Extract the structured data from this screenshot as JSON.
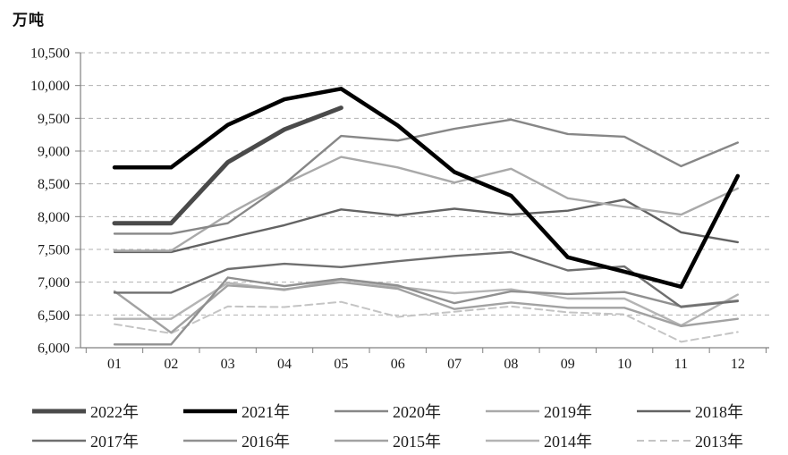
{
  "chart_data": {
    "type": "line",
    "title": "",
    "ylabel": "万吨",
    "xlabel": "",
    "ylim": [
      6000,
      10500
    ],
    "y_tick_values": [
      10500,
      10000,
      9500,
      9000,
      8500,
      8000,
      7500,
      7000,
      6500,
      6000
    ],
    "y_tick_labels": [
      "10,500",
      "10,000",
      "9,500",
      "9,000",
      "8,500",
      "8,000",
      "7,500",
      "7,000",
      "6,500",
      "6,000"
    ],
    "x_categories": [
      "01",
      "02",
      "03",
      "04",
      "05",
      "06",
      "07",
      "08",
      "09",
      "10",
      "11",
      "12"
    ],
    "grid": "horizontal dashed gridlines",
    "legend_position": "bottom, two rows of five",
    "axis_color": "#808080",
    "grid_color": "#b0b0b0",
    "tick_label_color": "#1a1a1a",
    "series": [
      {
        "name": "2022年",
        "color": "#4a4a4a",
        "width": 5,
        "dash": null,
        "values": [
          7900,
          7900,
          8830,
          9330,
          9660,
          null,
          null,
          null,
          null,
          null,
          null,
          null
        ]
      },
      {
        "name": "2021年",
        "color": "#000000",
        "width": 4.5,
        "dash": null,
        "values": [
          8750,
          8750,
          9400,
          9790,
          9950,
          9390,
          8680,
          8320,
          7380,
          7160,
          6930,
          8620
        ]
      },
      {
        "name": "2020年",
        "color": "#878787",
        "width": 2.4,
        "dash": null,
        "values": [
          7740,
          7740,
          7900,
          8500,
          9230,
          9160,
          9340,
          9480,
          9260,
          9220,
          8770,
          9130
        ]
      },
      {
        "name": "2019年",
        "color": "#a9a9a9",
        "width": 2.4,
        "dash": null,
        "values": [
          7480,
          7480,
          8030,
          8500,
          8910,
          8750,
          8520,
          8730,
          8280,
          8150,
          8030,
          8430
        ]
      },
      {
        "name": "2018年",
        "color": "#636363",
        "width": 2.4,
        "dash": null,
        "values": [
          7460,
          7460,
          7670,
          7870,
          8110,
          8020,
          8120,
          8030,
          8090,
          8260,
          7760,
          7610
        ]
      },
      {
        "name": "2017年",
        "color": "#6f6f6f",
        "width": 2.4,
        "dash": null,
        "values": [
          6840,
          6840,
          7200,
          7280,
          7230,
          7320,
          7400,
          7460,
          7180,
          7240,
          6620,
          6710
        ]
      },
      {
        "name": "2016年",
        "color": "#909090",
        "width": 2.4,
        "dash": null,
        "values": [
          6050,
          6050,
          7070,
          6940,
          7050,
          6950,
          6680,
          6860,
          6820,
          6850,
          6630,
          6720
        ]
      },
      {
        "name": "2015年",
        "color": "#a2a2a2",
        "width": 2.4,
        "dash": null,
        "values": [
          6860,
          6230,
          6950,
          6890,
          7000,
          6900,
          6590,
          6690,
          6610,
          6610,
          6330,
          6440
        ]
      },
      {
        "name": "2014年",
        "color": "#b4b4b4",
        "width": 2.4,
        "dash": null,
        "values": [
          6440,
          6440,
          6990,
          6880,
          7040,
          6930,
          6830,
          6890,
          6750,
          6750,
          6340,
          6810
        ]
      },
      {
        "name": "2013年",
        "color": "#c4c4c4",
        "width": 2,
        "dash": "8 5",
        "values": [
          6360,
          6220,
          6630,
          6620,
          6700,
          6470,
          6550,
          6630,
          6540,
          6510,
          6090,
          6240
        ]
      }
    ]
  }
}
